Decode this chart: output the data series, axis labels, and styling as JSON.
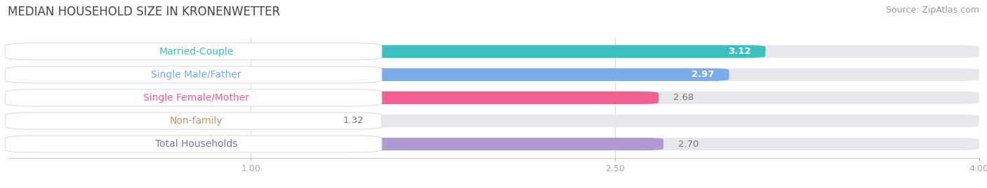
{
  "title": "MEDIAN HOUSEHOLD SIZE IN KRONENWETTER",
  "source": "Source: ZipAtlas.com",
  "categories": [
    "Married-Couple",
    "Single Male/Father",
    "Single Female/Mother",
    "Non-family",
    "Total Households"
  ],
  "values": [
    3.12,
    2.97,
    2.68,
    1.32,
    2.7
  ],
  "bar_colors": [
    "#3bbfbf",
    "#7aabea",
    "#f06090",
    "#f5cfa0",
    "#b09ad4"
  ],
  "label_text_colors": [
    "#3bbfbf",
    "#7aabea",
    "#f06090",
    "#c0956a",
    "#8070b0"
  ],
  "value_label_inside": [
    true,
    true,
    false,
    false,
    false
  ],
  "xlim": [
    0,
    4.0
  ],
  "xticks": [
    1.0,
    2.5,
    4.0
  ],
  "title_fontsize": 12,
  "source_fontsize": 9,
  "bar_label_fontsize": 10,
  "value_fontsize": 9.5,
  "background_color": "#ffffff",
  "bar_bg_color": "#e8e8ec"
}
